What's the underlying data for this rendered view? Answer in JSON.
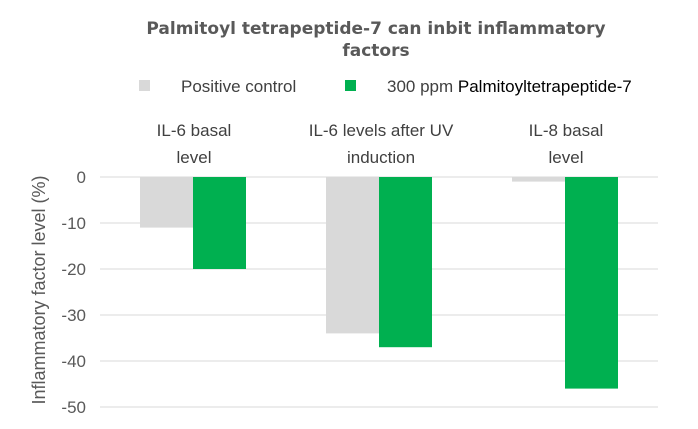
{
  "chart_data": {
    "type": "bar",
    "title_lines": [
      "Palmitoyl tetrapeptide-7 can inbit inflammatory",
      "factors"
    ],
    "categories": [
      [
        "IL-6 basal",
        "level"
      ],
      [
        "IL-6 levels after UV",
        "induction"
      ],
      [
        "IL-8 basal",
        "level"
      ]
    ],
    "series": [
      {
        "name": "Positive control",
        "values": [
          -11,
          -34,
          -1
        ],
        "color": "#d9d9d9"
      },
      {
        "name_prefix": "300 ppm ",
        "name_suffix": "Palmitoyltetrapeptide-7",
        "values": [
          -20,
          -37,
          -46
        ],
        "color": "#00b050"
      }
    ],
    "ylabel": "Inflammatory factor level (%)",
    "ylim": [
      -50,
      0
    ],
    "yticks": [
      0,
      -10,
      -20,
      -30,
      -40,
      -50
    ],
    "grid": true,
    "legend_position": "top"
  }
}
